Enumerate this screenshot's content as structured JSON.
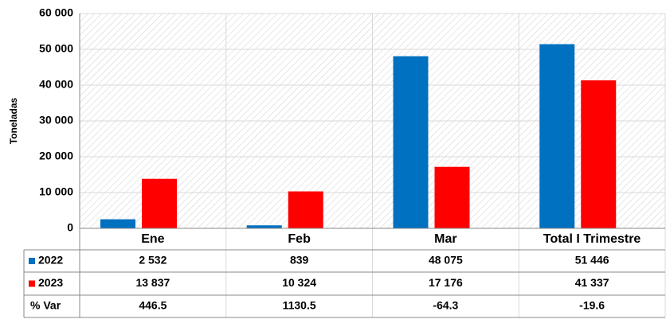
{
  "chart_data": {
    "type": "bar",
    "y_label": "Toneladas",
    "categories": [
      "Ene",
      "Feb",
      "Mar",
      "Total I Trimestre"
    ],
    "series": [
      {
        "name": "2022",
        "color": "#0070c0",
        "values": [
          2532,
          839,
          48075,
          51446
        ],
        "value_labels": [
          "2 532",
          "839",
          "48 075",
          "51 446"
        ]
      },
      {
        "name": "2023",
        "color": "#ff0000",
        "values": [
          13837,
          10324,
          17176,
          41337
        ],
        "value_labels": [
          "13 837",
          "10 324",
          "17 176",
          "41 337"
        ]
      }
    ],
    "var_label": "% Var",
    "var_values": [
      446.5,
      1130.5,
      -64.3,
      -19.6
    ],
    "ylim": [
      0,
      60000
    ],
    "yticks": [
      0,
      {
        "value": 10000,
        "label": "10 000"
      },
      {
        "value": 20000,
        "label": "20 000"
      },
      {
        "value": 30000,
        "label": "30 000"
      },
      {
        "value": 40000,
        "label": "40 000"
      },
      {
        "value": 50000,
        "label": "50 000"
      },
      {
        "value": 60000,
        "label": "60 000"
      }
    ],
    "grid": true
  }
}
